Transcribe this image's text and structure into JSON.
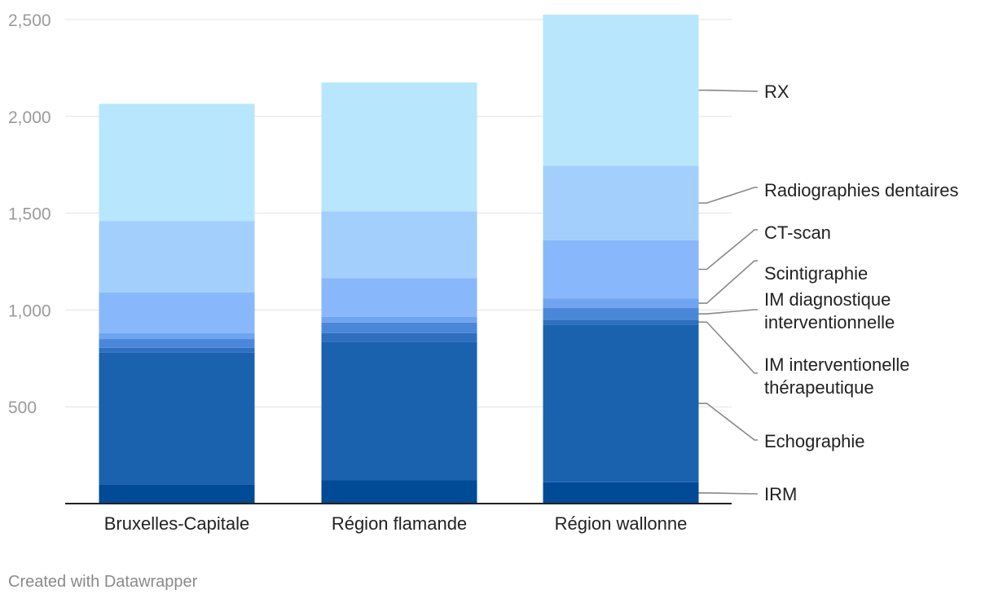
{
  "credit": "Created with Datawrapper",
  "chart_data": {
    "type": "bar",
    "stacked": true,
    "categories": [
      "Bruxelles-Capitale",
      "Région flamande",
      "Région wallonne"
    ],
    "ylim": [
      0,
      2500
    ],
    "yticks": [
      {
        "value": 500,
        "label": "500"
      },
      {
        "value": 1000,
        "label": "1,000"
      },
      {
        "value": 1500,
        "label": "1,500"
      },
      {
        "value": 2000,
        "label": "2,000"
      },
      {
        "value": 2500,
        "label": "2,500"
      }
    ],
    "grid": true,
    "legend": "direct-labels-right",
    "series": [
      {
        "name": "IRM",
        "label_lines": [
          "IRM"
        ],
        "color": "#004a96",
        "values": [
          100,
          120,
          110
        ]
      },
      {
        "name": "Echographie",
        "label_lines": [
          "Echographie"
        ],
        "color": "#1a62ae",
        "values": [
          680,
          715,
          815
        ]
      },
      {
        "name": "IM interventionelle thérapeutique",
        "label_lines": [
          "IM interventionelle",
          "thérapeutique"
        ],
        "color": "#2e70bf",
        "values": [
          25,
          45,
          25
        ]
      },
      {
        "name": "IM diagnostique interventionnelle",
        "label_lines": [
          "IM diagnostique",
          "interventionnelle"
        ],
        "color": "#4b87d8",
        "values": [
          45,
          55,
          60
        ]
      },
      {
        "name": "Scintigraphie",
        "label_lines": [
          "Scintigraphie"
        ],
        "color": "#6ea4f0",
        "values": [
          30,
          30,
          50
        ]
      },
      {
        "name": "CT-scan",
        "label_lines": [
          "CT-scan"
        ],
        "color": "#89b7fb",
        "values": [
          210,
          200,
          300
        ]
      },
      {
        "name": "Radiographies dentaires",
        "label_lines": [
          "Radiographies dentaires"
        ],
        "color": "#a3cffd",
        "values": [
          370,
          345,
          385
        ]
      },
      {
        "name": "RX",
        "label_lines": [
          "RX"
        ],
        "color": "#b8e7fd",
        "values": [
          605,
          665,
          780
        ]
      }
    ]
  }
}
